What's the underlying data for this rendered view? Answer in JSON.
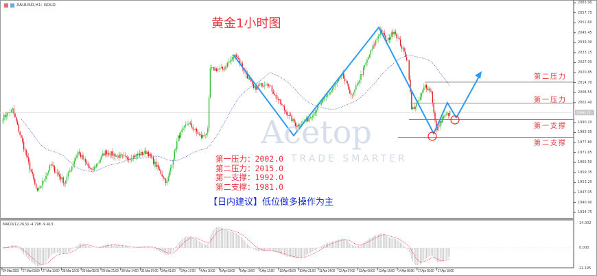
{
  "header": {
    "symbol_label": "XAUUSD,H1: GOLD"
  },
  "title": "黄金1小时图",
  "notes": [
    {
      "label": "第一压力：",
      "value": "2002.0"
    },
    {
      "label": "第二压力：",
      "value": "2015.0"
    },
    {
      "label": "第一支撑：",
      "value": "1992.0"
    },
    {
      "label": "第二支撑：",
      "value": "1981.0"
    }
  ],
  "advice": "【日内建议】低位做多操作为主",
  "levels": [
    {
      "name": "第二压力",
      "price": 2015.0
    },
    {
      "name": "第一压力",
      "price": 2002.0
    },
    {
      "name": "第一支撑",
      "price": 1992.0
    },
    {
      "name": "第二支撑",
      "price": 1981.0
    }
  ],
  "watermark": {
    "brand": "Acetop",
    "tagline": "TRADE SMARTER"
  },
  "price_axis": [
    "2063.90",
    "2057.75",
    "2051.60",
    "2045.45",
    "2039.30",
    "2033.15",
    "2027.00",
    "2020.85",
    "2014.70",
    "2008.55",
    "2002.40",
    "1990.10",
    "1983.95",
    "1977.80",
    "1971.65",
    "1965.50",
    "1959.35",
    "1953.20",
    "1947.05",
    "1940.90",
    "1934.75"
  ],
  "current_price": 1996.25,
  "time_axis": [
    "24 Mar 2023",
    "27 Mar 03:00",
    "27 Mar 19:00",
    "28 Mar 12:00",
    "29 Mar 05:00",
    "29 Mar 21:00",
    "30 Mar 14:00",
    "31 Mar 07:00",
    "3 Apr 01:00",
    "3 Apr 17:00",
    "4 Apr 10:00",
    "5 Apr 03:00",
    "5 Apr 19:00",
    "6 Apr 12:00",
    "10 Apr 05:00",
    "10 Apr 21:00",
    "11 Apr 14:00",
    "12 Apr 07:00",
    "13 Apr 00:00",
    "13 Apr 16:00",
    "14 Apr 09:00",
    "17 Apr 03:00",
    "17 Apr 19:00"
  ],
  "macd": {
    "label": "MACD(12,26,9) -4.798 -9.413",
    "axis": [
      "14.002",
      "0.000",
      "-11.195"
    ]
  },
  "colors": {
    "up": "#2fbf2f",
    "down": "#e8202a",
    "ma": "#3b3bd6",
    "annotation": "#2e9bf0",
    "circle": "#e8202a",
    "level_line": "#777777"
  },
  "chart_data": {
    "type": "candlestick",
    "bars_per_label": 16,
    "close_path": [
      [
        0,
        1993
      ],
      [
        8,
        1998
      ],
      [
        28,
        1947
      ],
      [
        39,
        1964
      ],
      [
        50,
        1953
      ],
      [
        61,
        1972
      ],
      [
        72,
        1960
      ],
      [
        83,
        1972
      ],
      [
        100,
        1968
      ],
      [
        117,
        1972
      ],
      [
        133,
        1953
      ],
      [
        142,
        1981
      ],
      [
        150,
        1990
      ],
      [
        161,
        1981
      ],
      [
        166,
        1985
      ],
      [
        168,
        2023
      ],
      [
        178,
        2023
      ],
      [
        189,
        2032
      ],
      [
        203,
        2011
      ],
      [
        214,
        2015
      ],
      [
        228,
        1998
      ],
      [
        238,
        1988
      ],
      [
        247,
        1992
      ],
      [
        261,
        2005
      ],
      [
        275,
        2019
      ],
      [
        283,
        2006
      ],
      [
        297,
        2032
      ],
      [
        306,
        2047
      ],
      [
        311,
        2040
      ],
      [
        317,
        2047
      ],
      [
        328,
        2028
      ],
      [
        331,
        1998
      ],
      [
        336,
        2002
      ],
      [
        342,
        2013
      ],
      [
        347,
        2009
      ],
      [
        351,
        1985
      ],
      [
        356,
        1993
      ],
      [
        362,
        1996
      ]
    ]
  }
}
